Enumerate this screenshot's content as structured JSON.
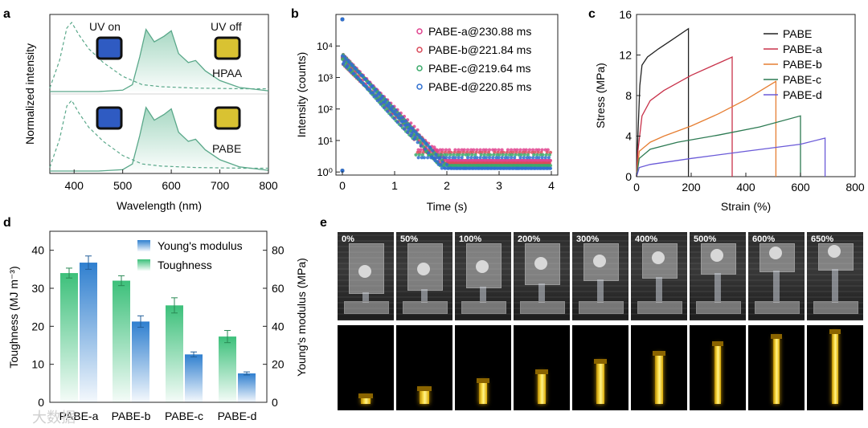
{
  "panel_letters": [
    "a",
    "b",
    "c",
    "d",
    "e"
  ],
  "watermark": "大数据",
  "chart_data": [
    {
      "id": "a",
      "type": "line",
      "title": "",
      "xlabel": "Wavelength (nm)",
      "ylabel": "Normalized intensity",
      "xlim": [
        350,
        800
      ],
      "xticks": [
        400,
        500,
        600,
        700,
        800
      ],
      "labels": {
        "uv_on": "UV on",
        "uv_off": "UV off",
        "top_sample": "HPAA",
        "bottom_sample": "PABE"
      },
      "colors": {
        "line": "#5aa88a",
        "uv_on_swatch": "#2f5bc2",
        "uv_off_swatch": "#d9c232"
      },
      "series": [
        {
          "name": "excitation (dashed)",
          "x": [
            350,
            370,
            385,
            395,
            410,
            430,
            460,
            500,
            540,
            580,
            650,
            750,
            800
          ],
          "y": [
            0.05,
            0.45,
            0.92,
            1.0,
            0.82,
            0.62,
            0.42,
            0.22,
            0.1,
            0.07,
            0.05,
            0.04,
            0.04
          ]
        },
        {
          "name": "emission (solid)",
          "x": [
            350,
            450,
            500,
            520,
            535,
            548,
            565,
            585,
            600,
            615,
            635,
            650,
            670,
            700,
            740,
            800
          ],
          "y": [
            0,
            0.0,
            0.02,
            0.1,
            0.5,
            0.9,
            0.72,
            0.8,
            0.88,
            0.55,
            0.42,
            0.45,
            0.3,
            0.16,
            0.06,
            0.01
          ]
        }
      ]
    },
    {
      "id": "b",
      "type": "scatter",
      "title": "",
      "xlabel": "Time (s)",
      "ylabel": "Intensity (counts)",
      "yscale": "log",
      "xlim": [
        0,
        4
      ],
      "xticks": [
        0,
        1,
        2,
        3,
        4
      ],
      "ylim": [
        1,
        100000
      ],
      "yticklabels": [
        "10⁰",
        "10¹",
        "10²",
        "10³",
        "10⁴"
      ],
      "series": [
        {
          "name": "PABE-a@230.88 ms",
          "color": "#e0448f",
          "tau": 0.2309,
          "floor": 2.3
        },
        {
          "name": "PABE-b@221.84 ms",
          "color": "#d94a5a",
          "tau": 0.2218,
          "floor": 1.9
        },
        {
          "name": "PABE-c@219.64 ms",
          "color": "#3aaa6a",
          "tau": 0.2196,
          "floor": 1.6
        },
        {
          "name": "PABE-d@220.85 ms",
          "color": "#2f6fd0",
          "tau": 0.2209,
          "floor": 1.3
        }
      ]
    },
    {
      "id": "c",
      "type": "line",
      "title": "",
      "xlabel": "Strain (%)",
      "ylabel": "Stress (MPa)",
      "xlim": [
        0,
        800
      ],
      "ylim": [
        0,
        16
      ],
      "xticks": [
        0,
        200,
        400,
        600,
        800
      ],
      "yticks": [
        0,
        4,
        8,
        12,
        16
      ],
      "series": [
        {
          "name": "PABE",
          "color": "#222222",
          "x": [
            0,
            5,
            12,
            20,
            40,
            80,
            130,
            190,
            190
          ],
          "y": [
            0,
            4,
            9,
            11,
            11.8,
            12.6,
            13.5,
            14.6,
            0
          ]
        },
        {
          "name": "PABE-a",
          "color": "#c8324a",
          "x": [
            0,
            5,
            20,
            50,
            100,
            200,
            300,
            350,
            350
          ],
          "y": [
            0,
            2.5,
            6,
            7.5,
            8.5,
            10,
            11.2,
            11.8,
            0
          ]
        },
        {
          "name": "PABE-b",
          "color": "#e67e32",
          "x": [
            0,
            10,
            50,
            100,
            200,
            300,
            400,
            510,
            510
          ],
          "y": [
            0,
            2.5,
            3.4,
            4,
            5,
            6.2,
            7.6,
            9.4,
            0
          ]
        },
        {
          "name": "PABE-c",
          "color": "#2c7a52",
          "x": [
            0,
            10,
            50,
            150,
            300,
            450,
            600,
            600
          ],
          "y": [
            0,
            1.8,
            2.7,
            3.4,
            4.1,
            4.9,
            6.0,
            0
          ]
        },
        {
          "name": "PABE-d",
          "color": "#6a5ad8",
          "x": [
            0,
            10,
            50,
            200,
            400,
            600,
            690,
            690
          ],
          "y": [
            0,
            0.9,
            1.2,
            1.8,
            2.5,
            3.2,
            3.8,
            0
          ]
        }
      ]
    },
    {
      "id": "d",
      "type": "bar",
      "title": "",
      "xlabel": "",
      "ylabel": "Toughness (MJ m⁻³)",
      "y2label": "Young's modulus (MPa)",
      "categories": [
        "PABE-a",
        "PABE-b",
        "PABE-c",
        "PABE-d"
      ],
      "ylim": [
        0,
        45
      ],
      "yticks": [
        0,
        10,
        20,
        30,
        40
      ],
      "y2lim": [
        0,
        90
      ],
      "y2ticks": [
        0,
        20,
        40,
        60,
        80
      ],
      "legend": [
        "Young's modulus",
        "Toughness"
      ],
      "series": [
        {
          "name": "Toughness",
          "axis": "left",
          "color": "#3cc07a",
          "values": [
            34,
            32,
            25.5,
            17.3
          ],
          "errors": [
            1.3,
            1.3,
            2.0,
            1.6
          ]
        },
        {
          "name": "Young's modulus",
          "axis": "right",
          "color": "#2f7fcf",
          "values": [
            73.5,
            42.5,
            25.2,
            15.2
          ],
          "errors": [
            3.5,
            3.0,
            1.3,
            0.8
          ]
        }
      ]
    }
  ],
  "strain_photos": {
    "labels": [
      "0%",
      "50%",
      "100%",
      "200%",
      "300%",
      "400%",
      "500%",
      "600%",
      "650%"
    ],
    "glow_lengths": [
      0.1,
      0.2,
      0.3,
      0.42,
      0.55,
      0.66,
      0.78,
      0.88,
      0.94
    ]
  }
}
